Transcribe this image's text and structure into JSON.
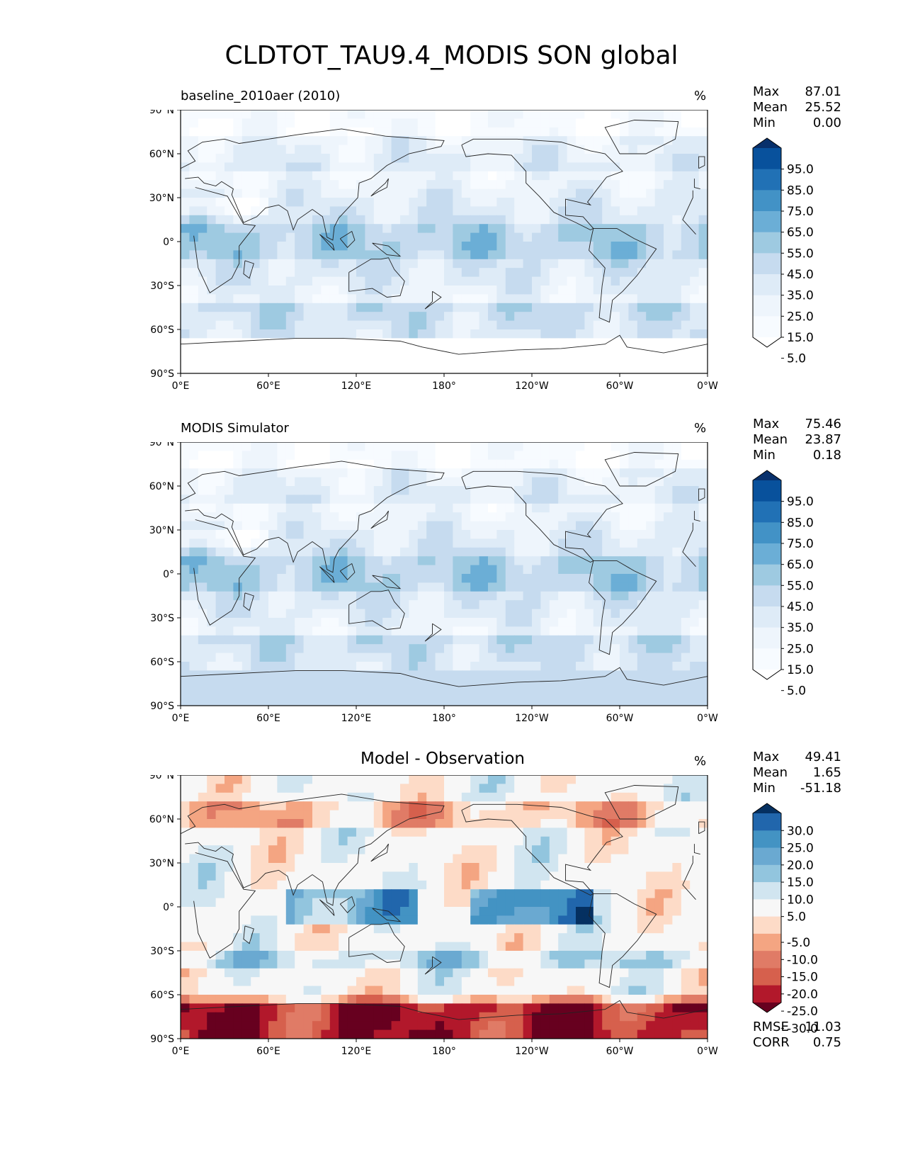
{
  "figure": {
    "title": "CLDTOT_TAU9.4_MODIS SON global"
  },
  "axes": {
    "lat_ticks": [
      "90°N",
      "60°N",
      "30°N",
      "0°",
      "30°S",
      "60°S",
      "90°S"
    ],
    "lon_ticks": [
      "0°E",
      "60°E",
      "120°E",
      "180°",
      "120°W",
      "60°W",
      "0°W"
    ]
  },
  "panels": [
    {
      "title": "baseline_2010aer (2010)",
      "units": "%",
      "stats": {
        "max_label": "Max",
        "max": "87.01",
        "mean_label": "Mean",
        "mean": "25.52",
        "min_label": "Min",
        "min": "0.00"
      },
      "colorbar": {
        "labels": [
          "95.0",
          "85.0",
          "75.0",
          "65.0",
          "55.0",
          "45.0",
          "35.0",
          "25.0",
          "15.0",
          "5.0"
        ],
        "colors": [
          "#08306b",
          "#08519c",
          "#2171b5",
          "#4292c6",
          "#6baed6",
          "#9ecae1",
          "#c6dbef",
          "#deebf7",
          "#eef5fc",
          "#f7fbff",
          "#ffffff"
        ]
      }
    },
    {
      "title": "MODIS Simulator",
      "units": "%",
      "stats": {
        "max_label": "Max",
        "max": "75.46",
        "mean_label": "Mean",
        "mean": "23.87",
        "min_label": "Min",
        "min": "0.18"
      },
      "colorbar": {
        "labels": [
          "95.0",
          "85.0",
          "75.0",
          "65.0",
          "55.0",
          "45.0",
          "35.0",
          "25.0",
          "15.0",
          "5.0"
        ],
        "colors": [
          "#08306b",
          "#08519c",
          "#2171b5",
          "#4292c6",
          "#6baed6",
          "#9ecae1",
          "#c6dbef",
          "#deebf7",
          "#eef5fc",
          "#f7fbff",
          "#ffffff"
        ]
      }
    },
    {
      "title": "Model - Observation",
      "units": "%",
      "stats": {
        "max_label": "Max",
        "max": "49.41",
        "mean_label": "Mean",
        "mean": "1.65",
        "min_label": "Min",
        "min": "-51.18"
      },
      "metrics": {
        "rmse_label": "RMSE",
        "rmse": "11.03",
        "corr_label": "CORR",
        "corr": "0.75"
      },
      "colorbar": {
        "labels": [
          "30.0",
          "25.0",
          "20.0",
          "15.0",
          "10.0",
          "5.0",
          "-5.0",
          "-10.0",
          "-15.0",
          "-20.0",
          "-25.0",
          "-30.0"
        ],
        "colors": [
          "#053061",
          "#2166ac",
          "#4393c3",
          "#6aa9d1",
          "#92c5de",
          "#d1e5f0",
          "#f7f7f7",
          "#fddbc7",
          "#f4a582",
          "#e07b66",
          "#d6604d",
          "#b2182b",
          "#67001f"
        ]
      }
    }
  ]
}
